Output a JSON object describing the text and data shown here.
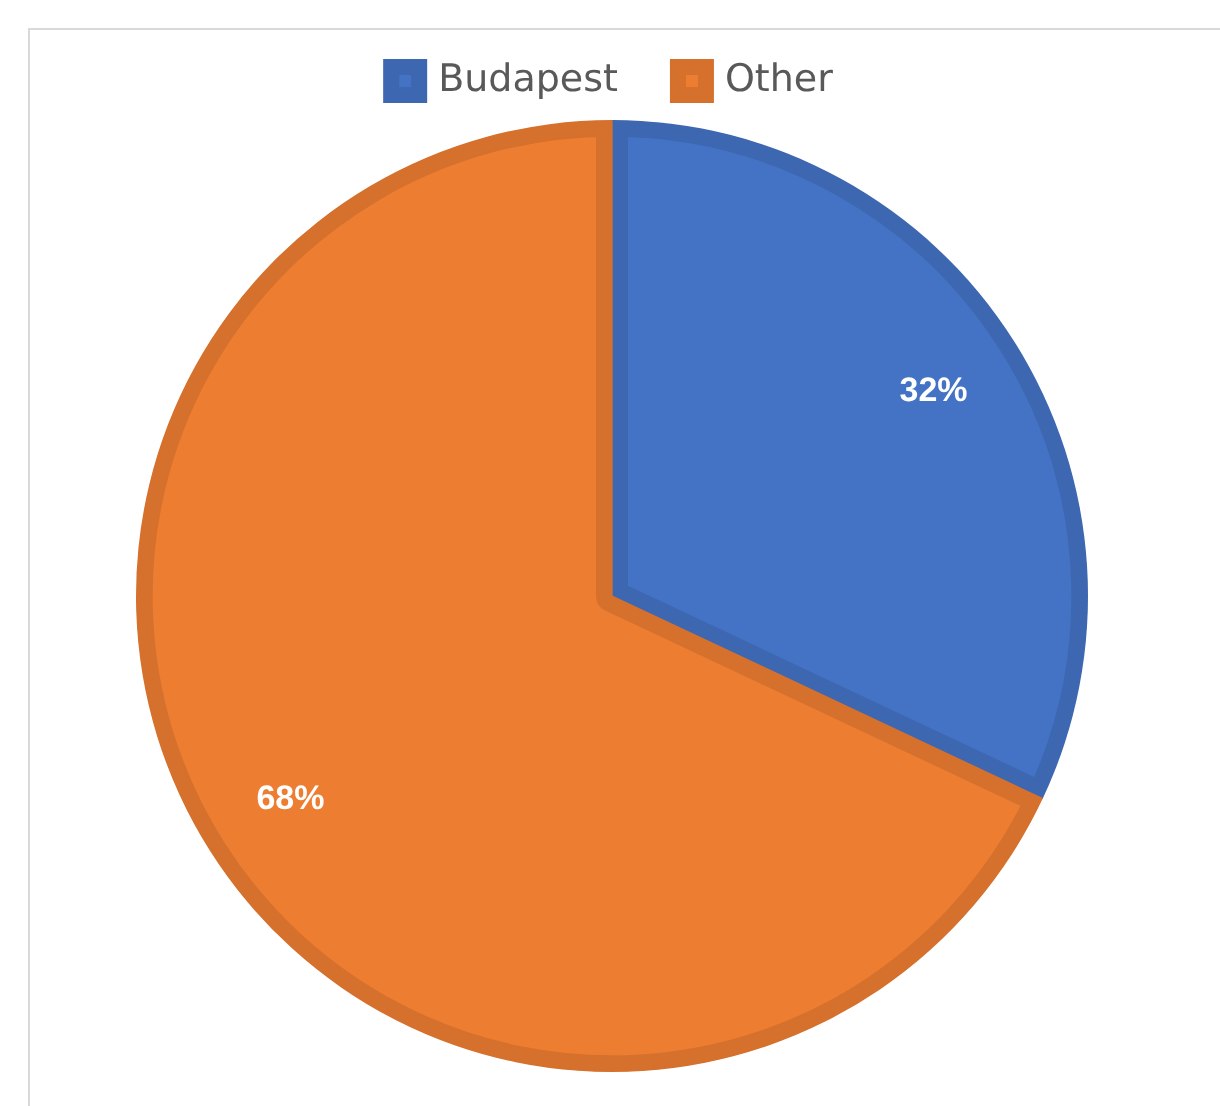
{
  "chart_data": {
    "type": "pie",
    "categories": [
      "Budapest",
      "Other"
    ],
    "values": [
      32,
      68
    ],
    "colors": [
      "#4472c4",
      "#ed7d31"
    ],
    "value_labels": [
      "32%",
      "68%"
    ],
    "legend": "top"
  }
}
